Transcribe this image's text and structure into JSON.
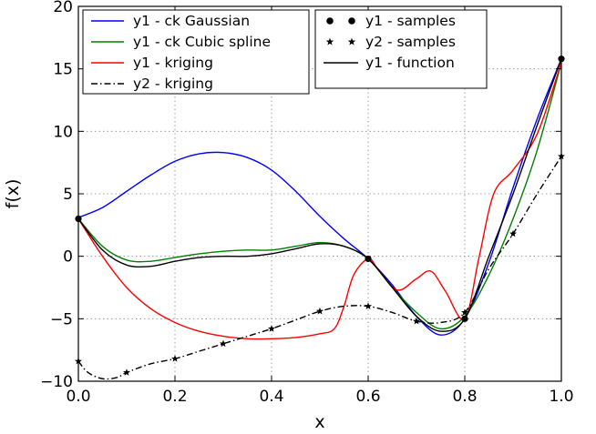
{
  "chart_data": {
    "type": "line",
    "title": "",
    "xlabel": "x",
    "ylabel": "f(x)",
    "xlim": [
      0.0,
      1.0
    ],
    "ylim": [
      -10,
      20
    ],
    "grid": true,
    "xticks": [
      "0.0",
      "0.2",
      "0.4",
      "0.6",
      "0.8",
      "1.0"
    ],
    "yticks": [
      "−10",
      "−5",
      "0",
      "5",
      "10",
      "15",
      "20"
    ],
    "legend_left": {
      "placement": "upper-left",
      "entries": [
        "y1 - ck Gaussian",
        "y1 - ck Cubic spline",
        "y1 - kriging",
        "y2 - kriging"
      ]
    },
    "legend_right": {
      "placement": "upper-center",
      "entries": [
        "y1 - samples",
        "y2 - samples",
        "y1 - function"
      ]
    },
    "series": [
      {
        "name": "y1 - ck Gaussian",
        "color": "#0000ff",
        "style": "solid",
        "x": [
          0.0,
          0.05,
          0.1,
          0.15,
          0.2,
          0.25,
          0.3,
          0.35,
          0.4,
          0.45,
          0.5,
          0.55,
          0.6,
          0.65,
          0.7,
          0.75,
          0.8,
          0.85,
          0.9,
          0.95,
          1.0
        ],
        "y": [
          3.1,
          3.9,
          5.2,
          6.5,
          7.6,
          8.2,
          8.3,
          7.9,
          6.9,
          5.2,
          3.2,
          1.4,
          -0.2,
          -2.3,
          -4.8,
          -6.3,
          -5.0,
          -0.5,
          5.5,
          11.0,
          15.8
        ]
      },
      {
        "name": "y1 - ck Cubic spline",
        "color": "#008000",
        "style": "solid",
        "x": [
          0.0,
          0.05,
          0.1,
          0.15,
          0.2,
          0.25,
          0.3,
          0.35,
          0.4,
          0.45,
          0.5,
          0.55,
          0.6,
          0.65,
          0.7,
          0.75,
          0.8,
          0.85,
          0.9,
          0.95,
          1.0
        ],
        "y": [
          3.0,
          0.8,
          -0.3,
          -0.4,
          -0.1,
          0.2,
          0.4,
          0.5,
          0.5,
          0.8,
          1.1,
          0.8,
          -0.2,
          -2.5,
          -4.5,
          -5.8,
          -4.8,
          -1.5,
          3.0,
          8.5,
          15.5
        ]
      },
      {
        "name": "y1 - kriging",
        "color": "#ff0000",
        "style": "solid",
        "x": [
          0.0,
          0.05,
          0.1,
          0.15,
          0.2,
          0.25,
          0.3,
          0.35,
          0.4,
          0.45,
          0.5,
          0.53,
          0.55,
          0.57,
          0.6,
          0.62,
          0.66,
          0.7,
          0.73,
          0.76,
          0.8,
          0.83,
          0.86,
          0.9,
          0.95,
          1.0
        ],
        "y": [
          3.0,
          0.0,
          -2.5,
          -4.2,
          -5.3,
          -6.0,
          -6.4,
          -6.6,
          -6.6,
          -6.5,
          -6.2,
          -5.8,
          -4.0,
          -1.5,
          -0.2,
          -1.0,
          -2.7,
          -1.8,
          -1.2,
          -2.8,
          -5.0,
          0.0,
          5.0,
          6.9,
          9.8,
          15.5
        ]
      },
      {
        "name": "y2 - kriging",
        "color": "#000000",
        "style": "dashdot",
        "x": [
          0.0,
          0.02,
          0.05,
          0.08,
          0.1,
          0.15,
          0.2,
          0.25,
          0.3,
          0.35,
          0.4,
          0.45,
          0.5,
          0.55,
          0.6,
          0.65,
          0.7,
          0.75,
          0.8,
          0.85,
          0.9,
          0.95,
          1.0
        ],
        "y": [
          -8.4,
          -9.3,
          -9.8,
          -9.7,
          -9.3,
          -8.6,
          -8.2,
          -7.6,
          -7.0,
          -6.4,
          -5.8,
          -5.1,
          -4.4,
          -4.0,
          -4.0,
          -4.5,
          -5.2,
          -5.3,
          -4.5,
          -1.0,
          1.8,
          5.0,
          8.0
        ]
      },
      {
        "name": "y1 - function",
        "color": "#000000",
        "style": "solid",
        "x": [
          0.0,
          0.05,
          0.1,
          0.15,
          0.2,
          0.25,
          0.3,
          0.35,
          0.4,
          0.45,
          0.5,
          0.55,
          0.6,
          0.65,
          0.7,
          0.75,
          0.8,
          0.85,
          0.9,
          0.95,
          1.0
        ],
        "y": [
          3.0,
          0.5,
          -0.7,
          -0.8,
          -0.4,
          -0.1,
          0.0,
          0.0,
          0.2,
          0.6,
          1.0,
          0.8,
          -0.2,
          -2.5,
          -4.8,
          -6.0,
          -5.0,
          0.0,
          5.0,
          10.5,
          15.8
        ]
      }
    ],
    "samples": [
      {
        "name": "y1 - samples",
        "marker": "circle",
        "color": "#000000",
        "x": [
          0.0,
          0.6,
          0.8,
          1.0
        ],
        "y": [
          3.0,
          -0.2,
          -5.0,
          15.8
        ]
      },
      {
        "name": "y2 - samples",
        "marker": "star",
        "color": "#000000",
        "x": [
          0.0,
          0.1,
          0.2,
          0.3,
          0.4,
          0.5,
          0.6,
          0.7,
          0.8,
          0.9,
          1.0
        ],
        "y": [
          -8.4,
          -9.3,
          -8.2,
          -7.0,
          -5.8,
          -4.4,
          -4.0,
          -5.2,
          -4.5,
          1.8,
          8.0
        ]
      }
    ]
  }
}
